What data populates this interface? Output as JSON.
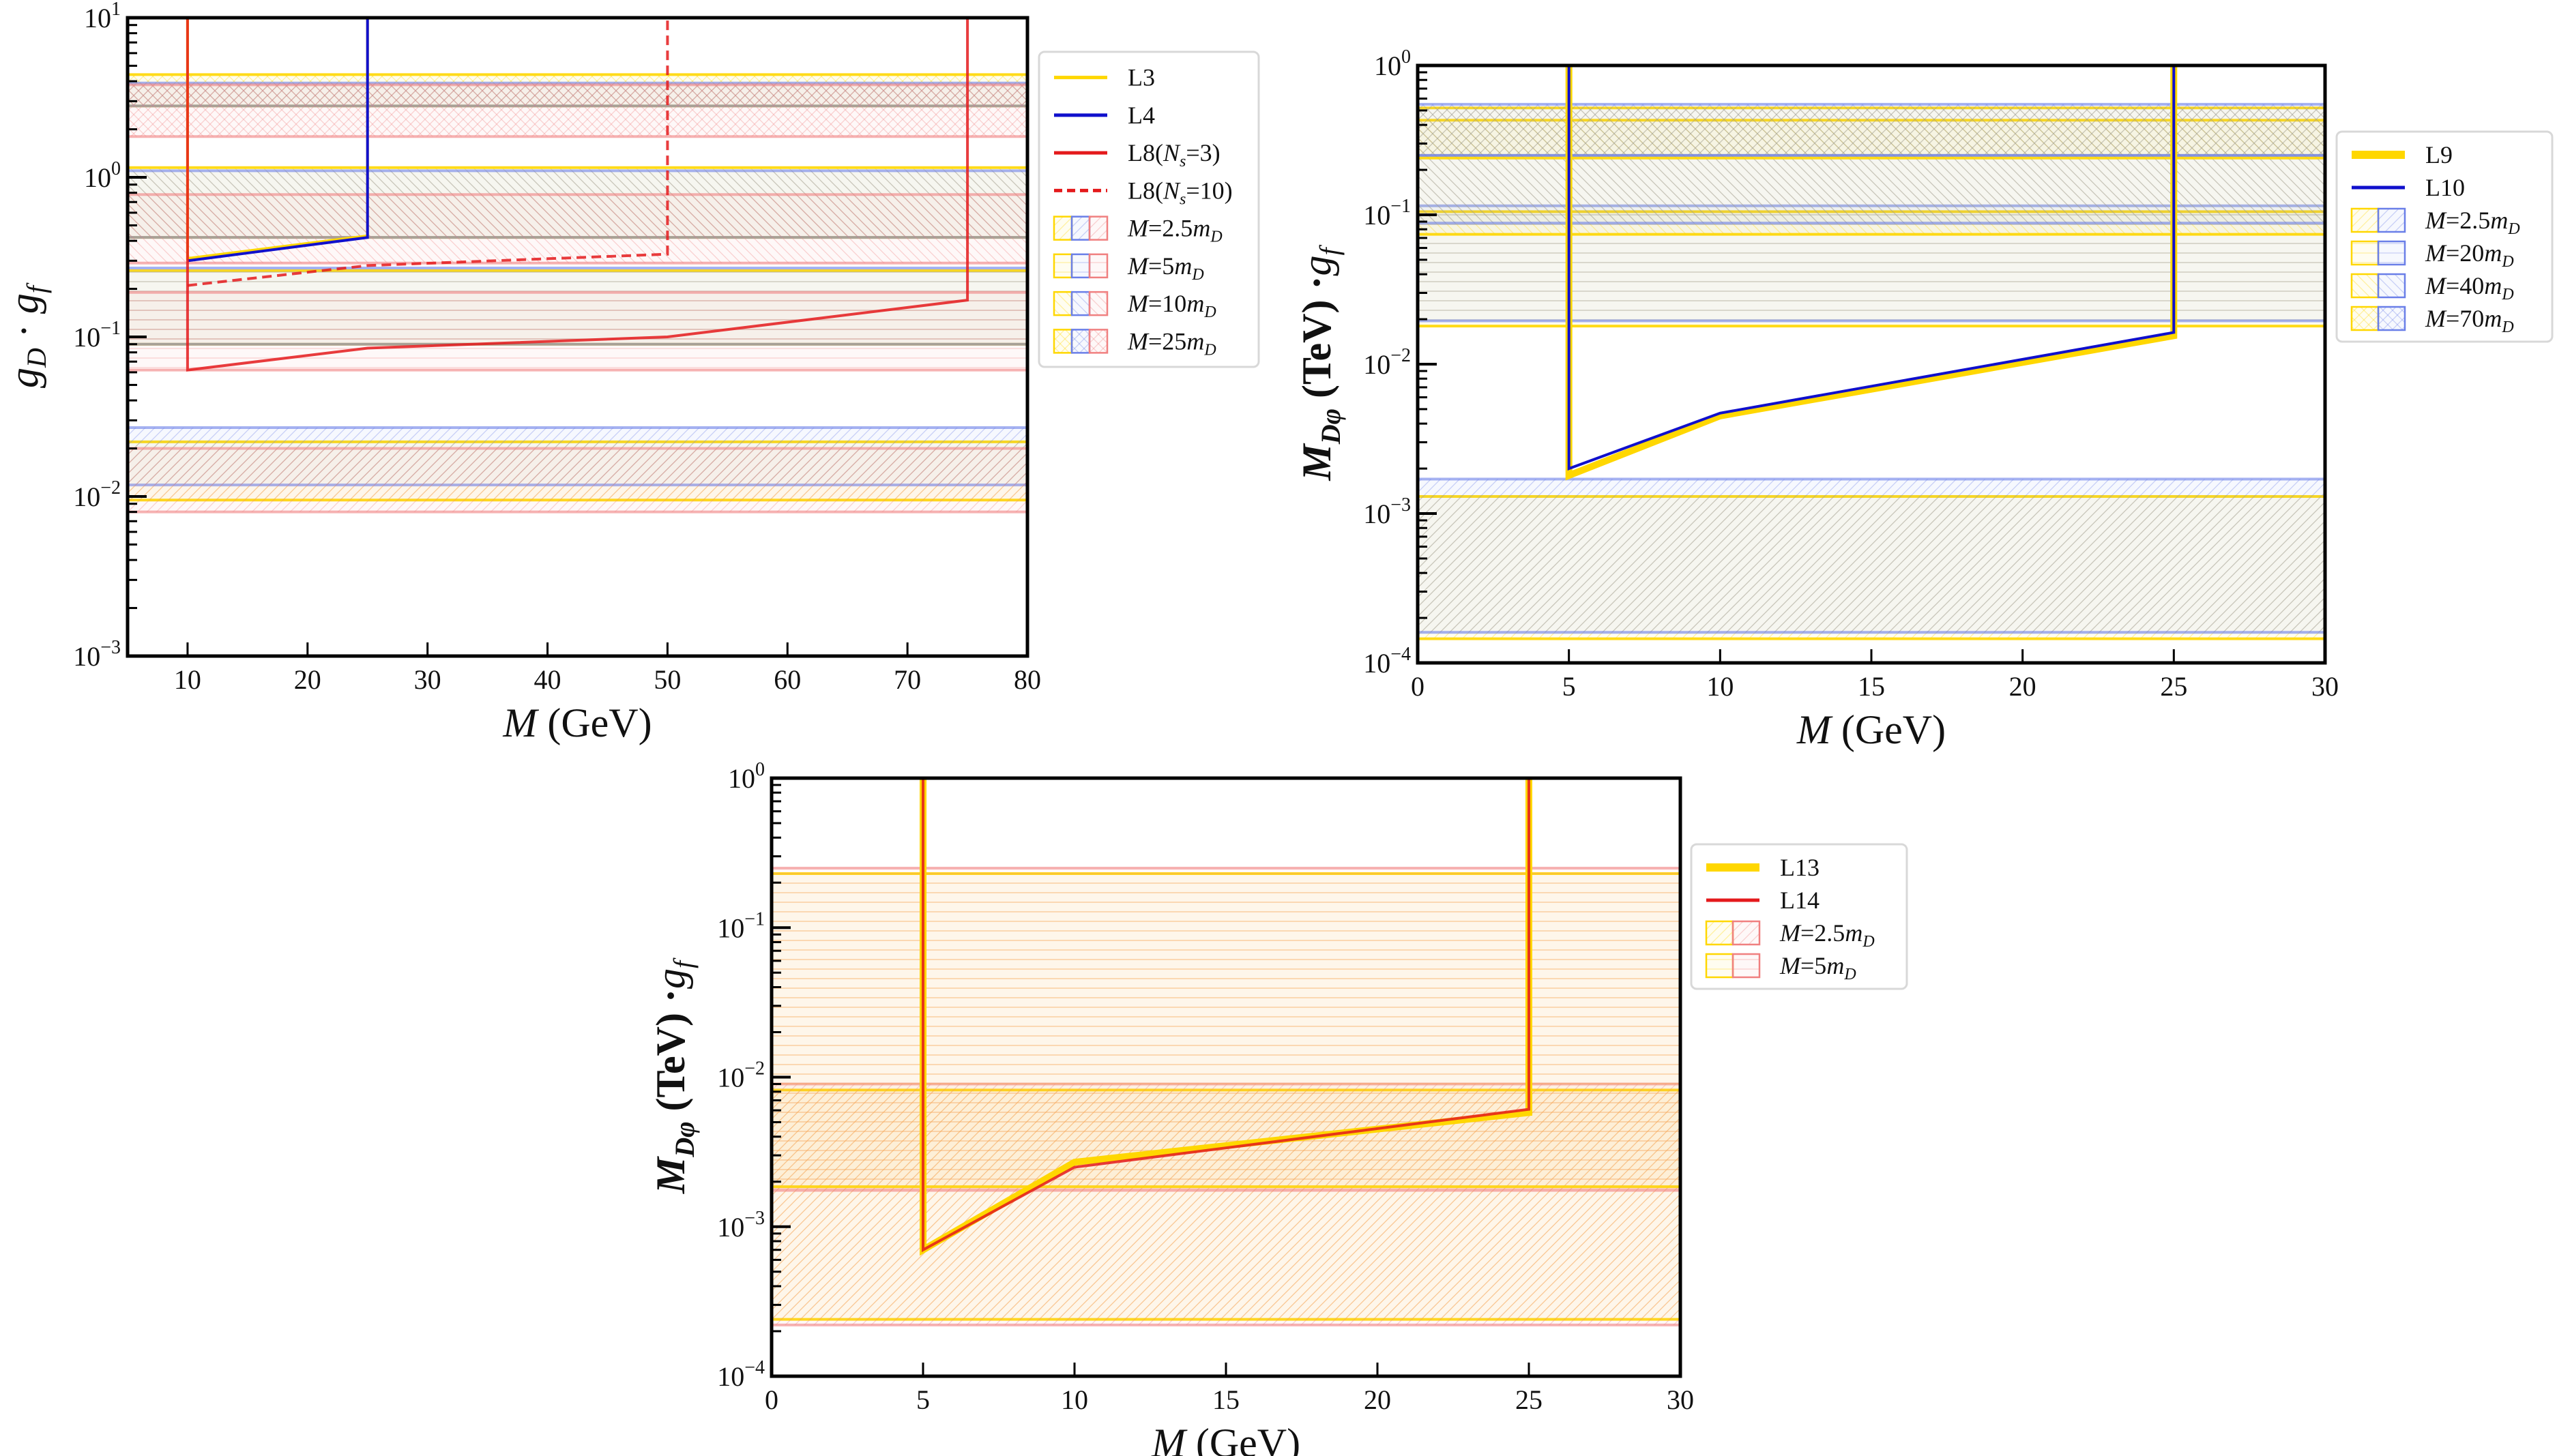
{
  "chart_data": [
    {
      "id": "panel-top-left",
      "type": "line",
      "xlabel": "M (GeV)",
      "ylabel": "g_D · g_f",
      "xlim": [
        5,
        80
      ],
      "ylim": [
        0.001,
        10
      ],
      "yscale": "log",
      "xticks": [
        10,
        20,
        30,
        40,
        50,
        60,
        70,
        80
      ],
      "yticks": [
        {
          "value": 10,
          "label": "10",
          "exp": "1"
        },
        {
          "value": 1,
          "label": "10",
          "exp": "0"
        },
        {
          "value": 0.1,
          "label": "10",
          "exp": "−1"
        },
        {
          "value": 0.01,
          "label": "10",
          "exp": "−2"
        },
        {
          "value": 0.001,
          "label": "10",
          "exp": "−3"
        }
      ],
      "grid": false,
      "legend_position": "outside-right-top",
      "series": [
        {
          "name": "L3",
          "color": "#FFD700",
          "style": "solid",
          "width": "thin",
          "points": [
            [
              10,
              10
            ],
            [
              10,
              0.31
            ],
            [
              25,
              0.43
            ],
            [
              25,
              10
            ]
          ]
        },
        {
          "name": "L4",
          "color": "#1010CC",
          "style": "solid",
          "width": "thin",
          "points": [
            [
              10,
              0.3
            ],
            [
              25,
              0.42
            ],
            [
              25,
              10
            ]
          ]
        },
        {
          "name": "L8(N_s=3)",
          "color": "#E41A1C",
          "style": "solid",
          "width": "thin",
          "points": [
            [
              10,
              10
            ],
            [
              10,
              0.062
            ],
            [
              25,
              0.085
            ],
            [
              50,
              0.1
            ],
            [
              75,
              0.17
            ],
            [
              75,
              10
            ]
          ]
        },
        {
          "name": "L8(N_s=10)",
          "color": "#E41A1C",
          "style": "dashed",
          "width": "thin",
          "points": [
            [
              10,
              0.21
            ],
            [
              25,
              0.28
            ],
            [
              50,
              0.33
            ],
            [
              50,
              10
            ]
          ]
        }
      ],
      "bands": [
        {
          "label": "M=2.5m_D",
          "hatch": "diag-up",
          "ranges": [
            {
              "color": "#FFD700",
              "low": 0.0095,
              "high": 0.022
            },
            {
              "color": "#6A7FE8",
              "low": 0.0118,
              "high": 0.027
            },
            {
              "color": "#F08080",
              "low": 0.008,
              "high": 0.02
            }
          ]
        },
        {
          "label": "M=5m_D",
          "hatch": "horizontal",
          "ranges": [
            {
              "color": "#FFD700",
              "low": 0.09,
              "high": 0.26
            },
            {
              "color": "#6A7FE8",
              "low": 0.09,
              "high": 0.27
            },
            {
              "color": "#F08080",
              "low": 0.062,
              "high": 0.19
            }
          ]
        },
        {
          "label": "M=10m_D",
          "hatch": "diag-down",
          "ranges": [
            {
              "color": "#FFD700",
              "low": 0.42,
              "high": 1.15
            },
            {
              "color": "#6A7FE8",
              "low": 0.42,
              "high": 1.1
            },
            {
              "color": "#F08080",
              "low": 0.29,
              "high": 0.78
            }
          ]
        },
        {
          "label": "M=25m_D",
          "hatch": "cross",
          "ranges": [
            {
              "color": "#FFD700",
              "low": 2.8,
              "high": 4.4
            },
            {
              "color": "#6A7FE8",
              "low": 2.8,
              "high": 3.9
            },
            {
              "color": "#F08080",
              "low": 1.8,
              "high": 3.8
            }
          ]
        }
      ],
      "legend": [
        {
          "kind": "line",
          "label": "L3",
          "color": "#FFD700",
          "style": "solid"
        },
        {
          "kind": "line",
          "label": "L4",
          "color": "#1010CC",
          "style": "solid"
        },
        {
          "kind": "line",
          "label": "L8(N",
          "sub": "s",
          "tail": "=3)",
          "color": "#E41A1C",
          "style": "solid"
        },
        {
          "kind": "line",
          "label": "L8(N",
          "sub": "s",
          "tail": "=10)",
          "color": "#E41A1C",
          "style": "dashed"
        },
        {
          "kind": "patch",
          "label": "M = 2.5 m",
          "sub": "D",
          "hatch": "diag-up",
          "colors": [
            "#FFD700",
            "#6A7FE8",
            "#F08080"
          ]
        },
        {
          "kind": "patch",
          "label": "M = 5 m",
          "sub": "D",
          "hatch": "horizontal",
          "colors": [
            "#FFD700",
            "#6A7FE8",
            "#F08080"
          ]
        },
        {
          "kind": "patch",
          "label": "M = 10 m",
          "sub": "D",
          "hatch": "diag-down",
          "colors": [
            "#FFD700",
            "#6A7FE8",
            "#F08080"
          ]
        },
        {
          "kind": "patch",
          "label": "M = 25 m",
          "sub": "D",
          "hatch": "cross",
          "colors": [
            "#FFD700",
            "#6A7FE8",
            "#F08080"
          ]
        }
      ]
    },
    {
      "id": "panel-top-right",
      "type": "line",
      "xlabel": "M (GeV)",
      "ylabel": "M_Dφ (TeV) · g_f",
      "xlim": [
        0,
        30
      ],
      "ylim": [
        0.0001,
        1
      ],
      "yscale": "log",
      "xticks": [
        0,
        5,
        10,
        15,
        20,
        25,
        30
      ],
      "yticks": [
        {
          "value": 1,
          "label": "10",
          "exp": "0"
        },
        {
          "value": 0.1,
          "label": "10",
          "exp": "−1"
        },
        {
          "value": 0.01,
          "label": "10",
          "exp": "−2"
        },
        {
          "value": 0.001,
          "label": "10",
          "exp": "−3"
        },
        {
          "value": 0.0001,
          "label": "10",
          "exp": "−4"
        }
      ],
      "grid": false,
      "legend_position": "outside-right-top",
      "series": [
        {
          "name": "L9",
          "color": "#FFD700",
          "style": "solid",
          "width": "thick",
          "points": [
            [
              5,
              1
            ],
            [
              5,
              0.0018
            ],
            [
              10,
              0.0045
            ],
            [
              25,
              0.0155
            ],
            [
              25,
              1
            ]
          ]
        },
        {
          "name": "L10",
          "color": "#1010CC",
          "style": "solid",
          "width": "thin",
          "points": [
            [
              5,
              1
            ],
            [
              5,
              0.002
            ],
            [
              10,
              0.0047
            ],
            [
              25,
              0.0163
            ],
            [
              25,
              1
            ]
          ]
        }
      ],
      "bands": [
        {
          "label": "M=2.5m_D",
          "hatch": "diag-up",
          "ranges": [
            {
              "color": "#FFD700",
              "low": 0.000145,
              "high": 0.0013
            },
            {
              "color": "#6A7FE8",
              "low": 0.00016,
              "high": 0.0017
            }
          ]
        },
        {
          "label": "M=20m_D",
          "hatch": "horizontal",
          "ranges": [
            {
              "color": "#FFD700",
              "low": 0.018,
              "high": 0.105
            },
            {
              "color": "#6A7FE8",
              "low": 0.0195,
              "high": 0.115
            }
          ]
        },
        {
          "label": "M=40m_D",
          "hatch": "diag-down",
          "ranges": [
            {
              "color": "#FFD700",
              "low": 0.074,
              "high": 0.43
            },
            {
              "color": "#6A7FE8",
              "low": 0.088,
              "high": 0.25
            }
          ]
        },
        {
          "label": "M=70m_D",
          "hatch": "cross",
          "ranges": [
            {
              "color": "#FFD700",
              "low": 0.24,
              "high": 0.52
            },
            {
              "color": "#6A7FE8",
              "low": 0.25,
              "high": 0.55
            }
          ]
        }
      ],
      "legend": [
        {
          "kind": "line",
          "label": "L9",
          "color": "#FFD700",
          "style": "thick"
        },
        {
          "kind": "line",
          "label": "L10",
          "color": "#1010CC",
          "style": "solid"
        },
        {
          "kind": "patch",
          "label": "M = 2.5 m",
          "sub": "D",
          "hatch": "diag-up",
          "colors": [
            "#FFD700",
            "#6A7FE8"
          ]
        },
        {
          "kind": "patch",
          "label": "M = 20 m",
          "sub": "D",
          "hatch": "horizontal",
          "colors": [
            "#FFD700",
            "#6A7FE8"
          ]
        },
        {
          "kind": "patch",
          "label": "M = 40 m",
          "sub": "D",
          "hatch": "diag-down",
          "colors": [
            "#FFD700",
            "#6A7FE8"
          ]
        },
        {
          "kind": "patch",
          "label": "M = 70 m",
          "sub": "D",
          "hatch": "cross",
          "colors": [
            "#FFD700",
            "#6A7FE8"
          ]
        }
      ]
    },
    {
      "id": "panel-bottom",
      "type": "line",
      "xlabel": "M (GeV)",
      "ylabel": "M_Dφ (TeV) · g_f",
      "xlim": [
        0,
        30
      ],
      "ylim": [
        0.0001,
        1
      ],
      "yscale": "log",
      "xticks": [
        0,
        5,
        10,
        15,
        20,
        25,
        30
      ],
      "yticks": [
        {
          "value": 1,
          "label": "10",
          "exp": "0"
        },
        {
          "value": 0.1,
          "label": "10",
          "exp": "−1"
        },
        {
          "value": 0.01,
          "label": "10",
          "exp": "−2"
        },
        {
          "value": 0.001,
          "label": "10",
          "exp": "−3"
        },
        {
          "value": 0.0001,
          "label": "10",
          "exp": "−4"
        }
      ],
      "grid": false,
      "legend_position": "outside-right-middle",
      "series": [
        {
          "name": "L13",
          "color": "#FFD700",
          "style": "solid",
          "width": "thick",
          "points": [
            [
              5,
              1
            ],
            [
              5,
              0.0007
            ],
            [
              10,
              0.0027
            ],
            [
              25,
              0.0058
            ],
            [
              25,
              1
            ]
          ]
        },
        {
          "name": "L14",
          "color": "#E41A1C",
          "style": "solid",
          "width": "thin",
          "points": [
            [
              5,
              1
            ],
            [
              5,
              0.0007
            ],
            [
              10,
              0.0025
            ],
            [
              25,
              0.0061
            ],
            [
              25,
              1
            ]
          ]
        }
      ],
      "bands": [
        {
          "label": "M=2.5m_D",
          "hatch": "diag-up",
          "ranges": [
            {
              "color": "#FFD700",
              "low": 0.00024,
              "high": 0.0082
            },
            {
              "color": "#F08080",
              "low": 0.00022,
              "high": 0.009
            }
          ]
        },
        {
          "label": "M=5m_D",
          "hatch": "horizontal",
          "ranges": [
            {
              "color": "#FFD700",
              "low": 0.00185,
              "high": 0.23
            },
            {
              "color": "#F08080",
              "low": 0.00175,
              "high": 0.25
            }
          ]
        }
      ],
      "legend": [
        {
          "kind": "line",
          "label": "L13",
          "color": "#FFD700",
          "style": "thick"
        },
        {
          "kind": "line",
          "label": "L14",
          "color": "#E41A1C",
          "style": "solid"
        },
        {
          "kind": "patch",
          "label": "M = 2.5 m",
          "sub": "D",
          "hatch": "diag-up",
          "colors": [
            "#FFD700",
            "#F08080"
          ]
        },
        {
          "kind": "patch",
          "label": "M = 5 m",
          "sub": "D",
          "hatch": "horizontal",
          "colors": [
            "#FFD700",
            "#F08080"
          ]
        }
      ]
    }
  ]
}
